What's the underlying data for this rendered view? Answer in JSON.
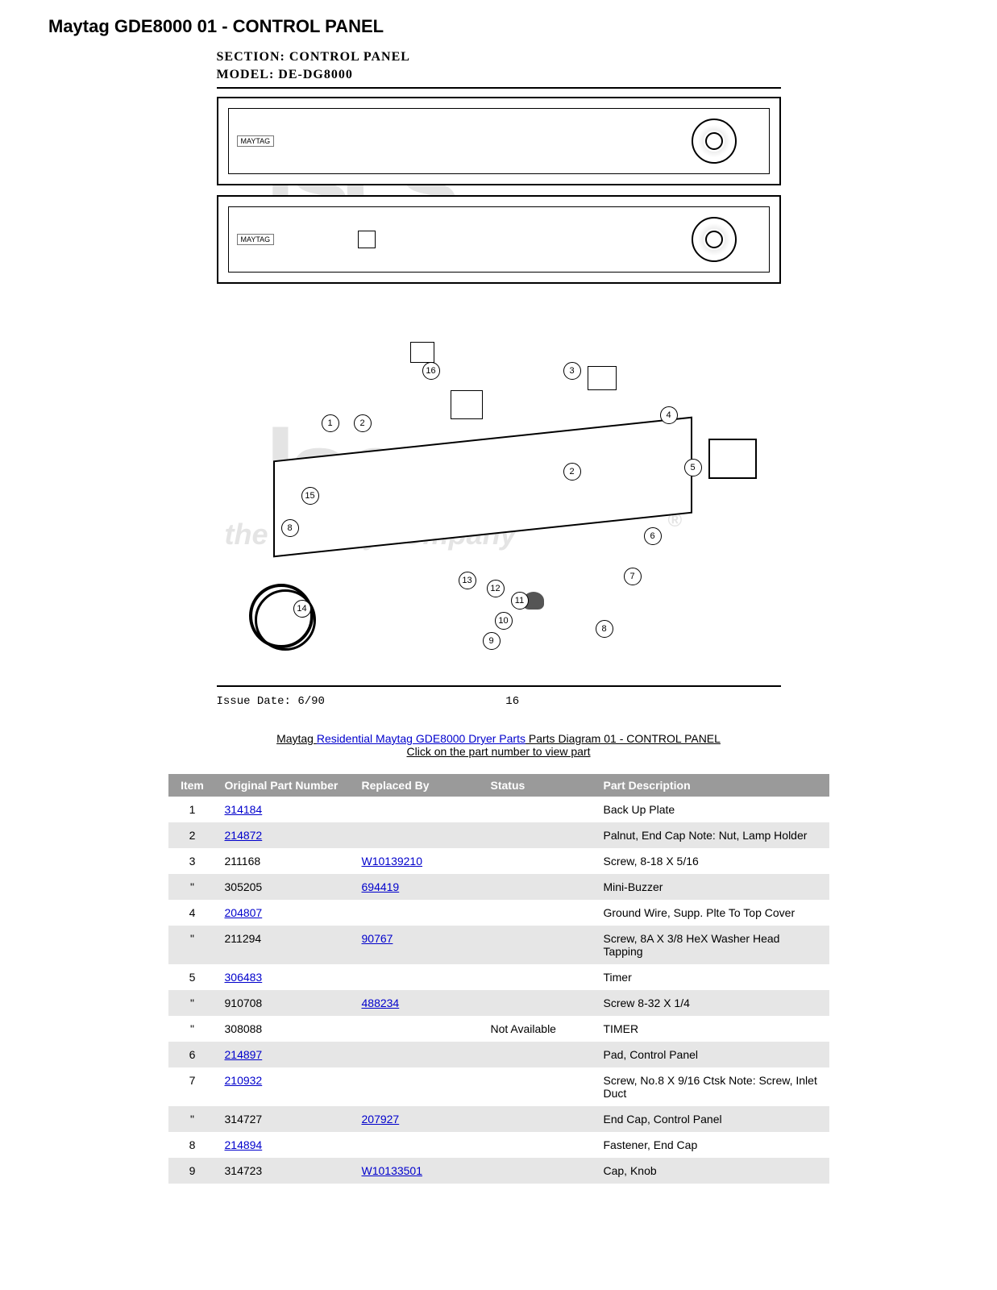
{
  "title": "Maytag GDE8000 01 - CONTROL PANEL",
  "diagram": {
    "section_label": "SECTION:",
    "section_value": "CONTROL PANEL",
    "model_label": "MODEL:",
    "model_value": "DE-DG8000",
    "brand": "MAYTAG",
    "issue_date_label": "Issue Date: 6/90",
    "page_number": "16",
    "callouts": [
      "1",
      "2",
      "3",
      "4",
      "5",
      "6",
      "7",
      "8",
      "9",
      "10",
      "11",
      "12",
      "13",
      "14",
      "15",
      "16"
    ]
  },
  "watermark": {
    "logo": "lscs",
    "tagline": "the laundry company",
    "reg": "®"
  },
  "caption": {
    "prefix": "Maytag ",
    "link_text": "Residential Maytag GDE8000 Dryer Parts",
    "suffix": " Parts Diagram 01 - CONTROL PANEL",
    "line2": "Click on the part number to view part"
  },
  "table": {
    "headers": {
      "item": "Item",
      "original": "Original Part Number",
      "replaced": "Replaced By",
      "status": "Status",
      "description": "Part Description"
    },
    "rows": [
      {
        "item": "1",
        "original": "314184",
        "orig_link": true,
        "replaced": "",
        "repl_link": false,
        "status": "",
        "description": "Back Up Plate",
        "shade": "odd"
      },
      {
        "item": "2",
        "original": "214872",
        "orig_link": true,
        "replaced": "",
        "repl_link": false,
        "status": "",
        "description": "Palnut, End Cap Note: Nut, Lamp Holder",
        "shade": "even"
      },
      {
        "item": "3",
        "original": "211168",
        "orig_link": false,
        "replaced": "W10139210",
        "repl_link": true,
        "status": "",
        "description": "Screw, 8-18 X 5/16",
        "shade": "odd"
      },
      {
        "item": "\"",
        "original": "305205",
        "orig_link": false,
        "replaced": "694419",
        "repl_link": true,
        "status": "",
        "description": "Mini-Buzzer",
        "shade": "even"
      },
      {
        "item": "4",
        "original": "204807",
        "orig_link": true,
        "replaced": "",
        "repl_link": false,
        "status": "",
        "description": "Ground Wire, Supp. Plte To Top Cover",
        "shade": "odd"
      },
      {
        "item": "\"",
        "original": "211294",
        "orig_link": false,
        "replaced": "90767",
        "repl_link": true,
        "status": "",
        "description": "Screw, 8A X 3/8 HeX Washer Head Tapping",
        "shade": "even"
      },
      {
        "item": "5",
        "original": "306483",
        "orig_link": true,
        "replaced": "",
        "repl_link": false,
        "status": "",
        "description": "Timer",
        "shade": "odd"
      },
      {
        "item": "\"",
        "original": "910708",
        "orig_link": false,
        "replaced": "488234",
        "repl_link": true,
        "status": "",
        "description": "Screw 8-32 X 1/4",
        "shade": "even"
      },
      {
        "item": "\"",
        "original": "308088",
        "orig_link": false,
        "replaced": "",
        "repl_link": false,
        "status": "Not Available",
        "description": "TIMER",
        "shade": "odd"
      },
      {
        "item": "6",
        "original": "214897",
        "orig_link": true,
        "replaced": "",
        "repl_link": false,
        "status": "",
        "description": "Pad, Control Panel",
        "shade": "even"
      },
      {
        "item": "7",
        "original": "210932",
        "orig_link": true,
        "replaced": "",
        "repl_link": false,
        "status": "",
        "description": "Screw, No.8 X 9/16 Ctsk Note: Screw, Inlet Duct",
        "shade": "odd"
      },
      {
        "item": "\"",
        "original": "314727",
        "orig_link": false,
        "replaced": "207927",
        "repl_link": true,
        "status": "",
        "description": "End Cap, Control Panel",
        "shade": "even"
      },
      {
        "item": "8",
        "original": "214894",
        "orig_link": true,
        "replaced": "",
        "repl_link": false,
        "status": "",
        "description": "Fastener, End Cap",
        "shade": "odd"
      },
      {
        "item": "9",
        "original": "314723",
        "orig_link": false,
        "replaced": "W10133501",
        "repl_link": true,
        "status": "",
        "description": "Cap, Knob",
        "shade": "even"
      }
    ]
  },
  "colors": {
    "header_bg": "#9a9a9a",
    "header_fg": "#ffffff",
    "row_even": "#e6e6e6",
    "row_odd": "#ffffff",
    "link": "#0000cc",
    "watermark": "#e4e4e4"
  }
}
